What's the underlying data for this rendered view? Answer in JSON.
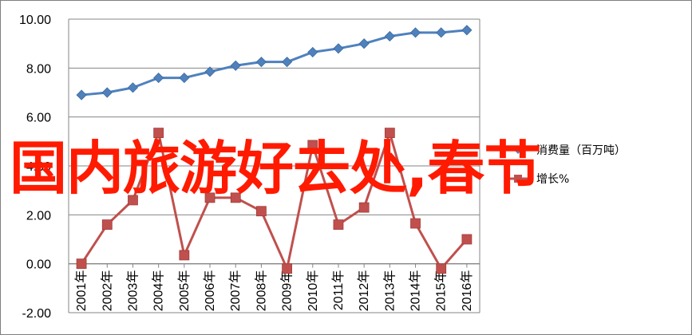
{
  "chart_data": {
    "type": "line",
    "categories": [
      "2001年",
      "2002年",
      "2003年",
      "2004年",
      "2005年",
      "2006年",
      "2007年",
      "2008年",
      "2009年",
      "2010年",
      "2011年",
      "2012年",
      "2013年",
      "2014年",
      "2015年",
      "2016年"
    ],
    "series": [
      {
        "name": "消费量（百万吨）",
        "color": "#4f81bd",
        "marker": "diamond",
        "values": [
          6.9,
          7.0,
          7.2,
          7.6,
          7.6,
          7.85,
          8.1,
          8.25,
          8.25,
          8.65,
          8.8,
          9.0,
          9.3,
          9.45,
          9.45,
          9.55
        ]
      },
      {
        "name": "增长%",
        "color": "#c0504d",
        "marker": "square",
        "values": [
          0.0,
          1.6,
          2.6,
          5.35,
          0.35,
          2.7,
          2.7,
          2.15,
          -0.2,
          4.85,
          1.6,
          2.3,
          5.35,
          1.65,
          -0.2,
          1.0
        ]
      }
    ],
    "y_ticks": [
      "10.00",
      "8.00",
      "6.00",
      "4.00",
      "2.00",
      "0.00",
      "-2.00"
    ],
    "ylim": [
      -2,
      10
    ],
    "grid": true,
    "legend": "right"
  },
  "overlay": {
    "text": "国内旅游好去处,春节",
    "color": "#ff1a00"
  }
}
